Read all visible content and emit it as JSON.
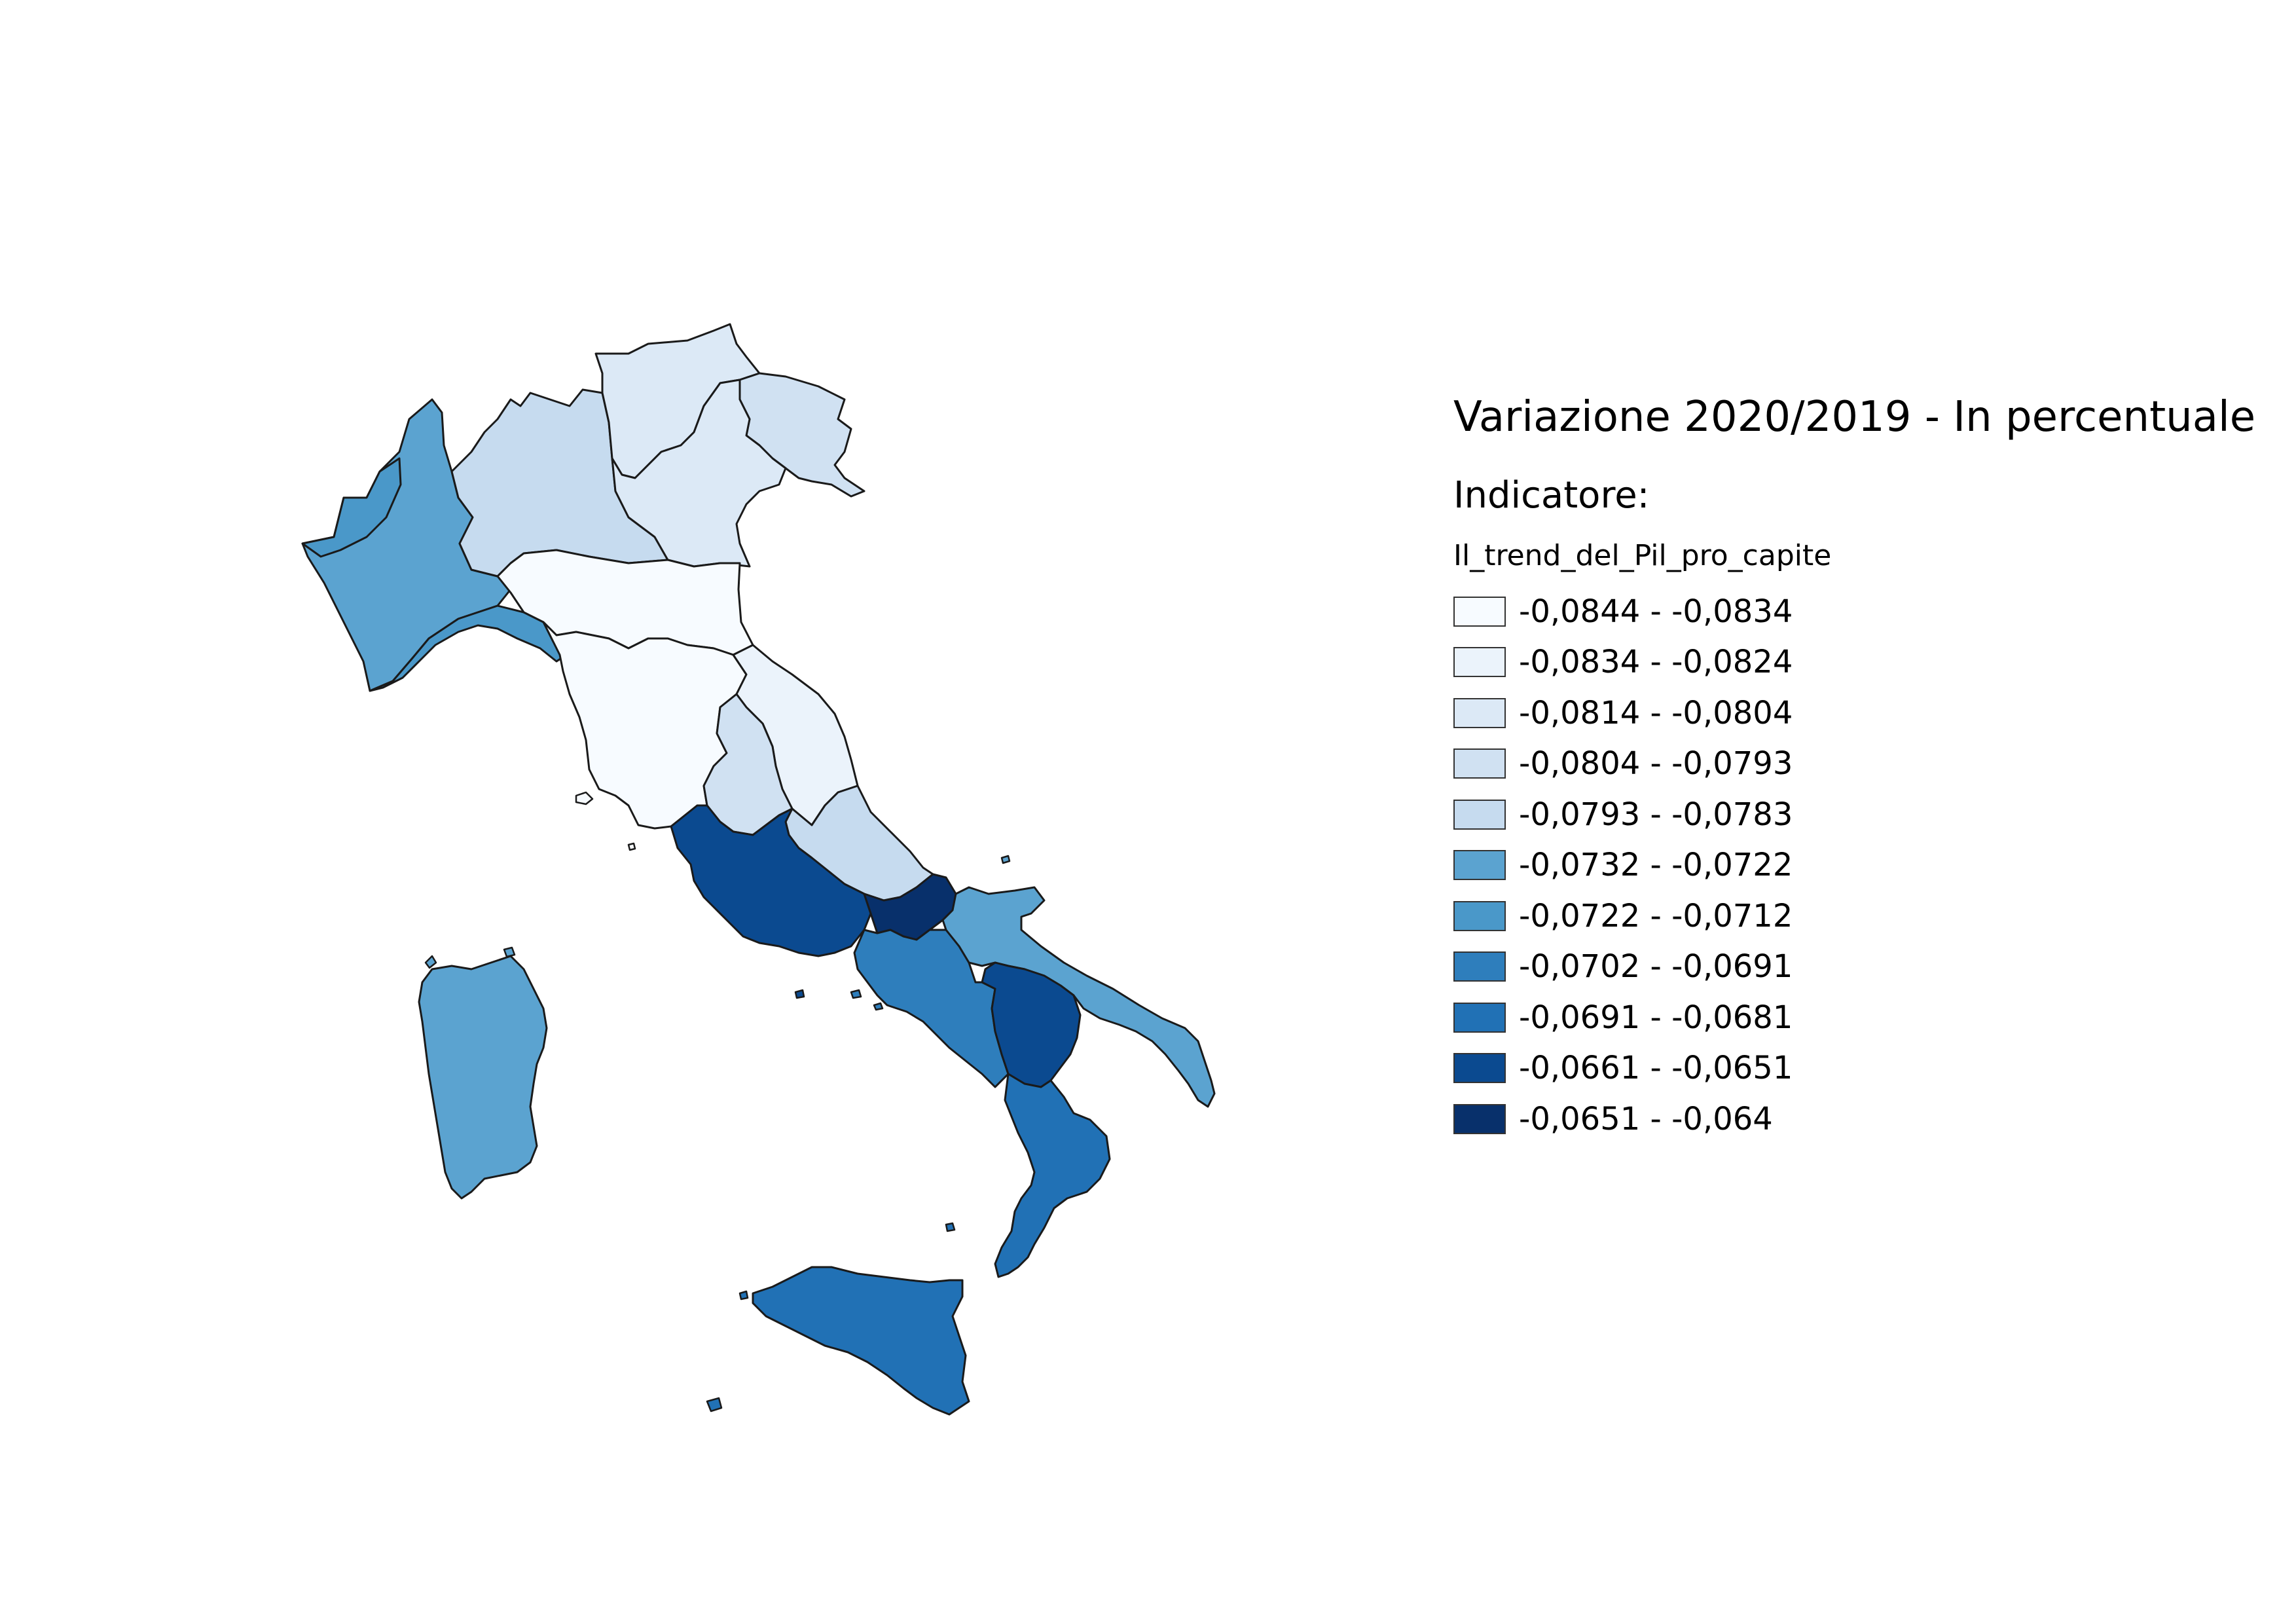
{
  "map": {
    "title": "Variazione 2020/2019 - In percentuale",
    "legend_heading": "Indicatore:",
    "field_name": "Il_trend_del_Pil_pro_capite",
    "classes": [
      {
        "label": "-0,0844 - -0,0834",
        "color": "#f7fbff"
      },
      {
        "label": "-0,0834 - -0,0824",
        "color": "#ebf3fb"
      },
      {
        "label": "-0,0814 - -0,0804",
        "color": "#dce9f6"
      },
      {
        "label": "-0,0804 - -0,0793",
        "color": "#d0e1f2"
      },
      {
        "label": "-0,0793 - -0,0783",
        "color": "#c6dbef"
      },
      {
        "label": "-0,0732 - -0,0722",
        "color": "#5ba3d0"
      },
      {
        "label": "-0,0722 - -0,0712",
        "color": "#4a98c9"
      },
      {
        "label": "-0,0702 - -0,0691",
        "color": "#2e7ebc"
      },
      {
        "label": "-0,0691 - -0,0681",
        "color": "#2171b5"
      },
      {
        "label": "-0,0661 - -0,0651",
        "color": "#0b4a90"
      },
      {
        "label": "-0,0651 - -0,064",
        "color": "#08306b"
      }
    ],
    "regions": [
      {
        "name": "Valle d'Aosta",
        "class": 6
      },
      {
        "name": "Piemonte",
        "class": 5
      },
      {
        "name": "Lombardia",
        "class": 4
      },
      {
        "name": "Trentino-Alto Adige",
        "class": 2
      },
      {
        "name": "Veneto",
        "class": 2
      },
      {
        "name": "Friuli-Venezia Giulia",
        "class": 3
      },
      {
        "name": "Liguria",
        "class": 6
      },
      {
        "name": "Emilia-Romagna",
        "class": 0
      },
      {
        "name": "Toscana",
        "class": 0
      },
      {
        "name": "Marche",
        "class": 1
      },
      {
        "name": "Umbria",
        "class": 3
      },
      {
        "name": "Abruzzo",
        "class": 4
      },
      {
        "name": "Lazio",
        "class": 9
      },
      {
        "name": "Molise",
        "class": 10
      },
      {
        "name": "Campania",
        "class": 7
      },
      {
        "name": "Puglia",
        "class": 5
      },
      {
        "name": "Basilicata",
        "class": 9
      },
      {
        "name": "Calabria",
        "class": 8
      },
      {
        "name": "Sicilia",
        "class": 8
      },
      {
        "name": "Sardegna",
        "class": 5
      }
    ]
  }
}
